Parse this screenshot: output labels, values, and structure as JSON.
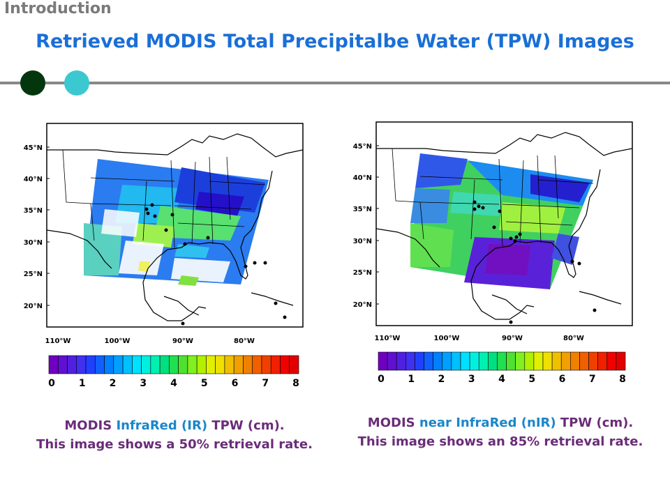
{
  "section": "Introduction",
  "title": "Retrieved MODIS Total Precipitalbe Water (TPW) Images",
  "colors": {
    "title": "#1a6fd6",
    "caption": "#6a2c79",
    "caption_highlight": "#1a86c9",
    "dot1": "#04360d",
    "dot2": "#3cc8d0"
  },
  "maps": {
    "lat_labels": [
      "45°N",
      "40°N",
      "35°N",
      "30°N",
      "25°N",
      "20°N"
    ],
    "lon_labels": [
      "110°W",
      "100°W",
      "90°W",
      "80°W"
    ],
    "colorbar_ticks": [
      "0",
      "1",
      "2",
      "3",
      "4",
      "5",
      "6",
      "7",
      "8"
    ],
    "colorbar_colors": [
      "#7000c0",
      "#6010d0",
      "#5020e0",
      "#4030f0",
      "#2040ff",
      "#1060ff",
      "#0080ff",
      "#00a0ff",
      "#00c0ff",
      "#00e0ff",
      "#00f0e0",
      "#00f0b0",
      "#00e080",
      "#20e050",
      "#50e030",
      "#80f020",
      "#b0f000",
      "#e0f000",
      "#f0e000",
      "#f0c000",
      "#f0a000",
      "#f08000",
      "#f06000",
      "#f04000",
      "#f02000",
      "#f00000",
      "#e00000"
    ]
  },
  "left_caption": {
    "prefix": "MODIS ",
    "highlight": "InfraRed (IR)",
    "suffix": " TPW (cm).",
    "line2": "This image shows a 50% retrieval rate."
  },
  "right_caption": {
    "prefix": "MODIS ",
    "highlight": "near InfraRed (nIR)",
    "suffix": " TPW (cm).",
    "line2": "This image shows an 85% retrieval rate."
  }
}
